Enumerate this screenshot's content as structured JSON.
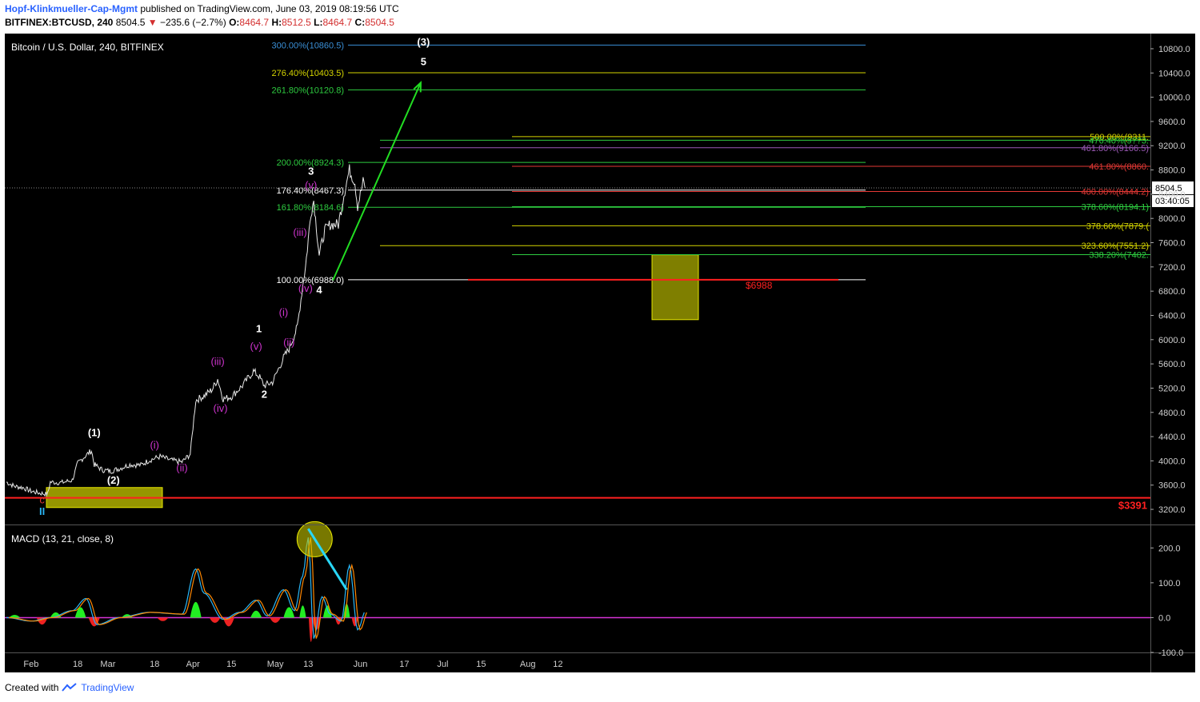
{
  "header": {
    "author": "Hopf-Klinkmueller-Cap-Mgmt",
    "published": "published on TradingView.com, June 03, 2019 08:19:56 UTC",
    "symbol": "BITFINEX:BTCUSD, 240",
    "last": "8504.5",
    "change": "−235.6 (−2.7%)",
    "o_label": "O:",
    "o": "8464.7",
    "h_label": "H:",
    "h": "8512.5",
    "l_label": "L:",
    "l": "8464.7",
    "c_label": "C:",
    "c": "8504.5"
  },
  "footer": {
    "created_with": "Created with",
    "brand": "TradingView"
  },
  "chart_data": [
    {
      "type": "line",
      "title": "Bitcoin / U.S. Dollar, 240, BITFINEX",
      "ylim": [
        2950,
        11050
      ],
      "y_ticks": [
        "10800.0",
        "10400.0",
        "10000.0",
        "9600.0",
        "9200.0",
        "8800.0",
        "8400.0",
        "8000.0",
        "7600.0",
        "7200.0",
        "6800.0",
        "6400.0",
        "6000.0",
        "5600.0",
        "5200.0",
        "4800.0",
        "4400.0",
        "4000.0",
        "3600.0",
        "3200.0"
      ],
      "x_ticks": [
        "Feb",
        "18",
        "Mar",
        "18",
        "Apr",
        "15",
        "May",
        "13",
        "Jun",
        "17",
        "Jul",
        "15",
        "Aug",
        "12"
      ],
      "current_price_label": "8504.5",
      "countdown_label": "03:40:05",
      "series": [
        {
          "x": [
            "2019-01-23",
            "2019-01-26",
            "2019-01-29",
            "2019-02-01",
            "2019-02-04",
            "2019-02-07",
            "2019-02-08",
            "2019-02-12",
            "2019-02-16",
            "2019-02-18",
            "2019-02-20",
            "2019-02-23",
            "2019-02-24",
            "2019-02-27",
            "2019-03-02",
            "2019-03-05",
            "2019-03-09",
            "2019-03-13",
            "2019-03-16",
            "2019-03-20",
            "2019-03-24",
            "2019-03-28",
            "2019-03-31",
            "2019-04-02",
            "2019-04-05",
            "2019-04-08",
            "2019-04-10",
            "2019-04-12",
            "2019-04-15",
            "2019-04-19",
            "2019-04-23",
            "2019-04-25",
            "2019-04-27",
            "2019-04-30",
            "2019-05-04",
            "2019-05-06",
            "2019-05-09",
            "2019-05-11",
            "2019-05-12",
            "2019-05-14",
            "2019-05-15",
            "2019-05-17",
            "2019-05-19",
            "2019-05-21",
            "2019-05-24",
            "2019-05-26",
            "2019-05-28",
            "2019-05-30",
            "2019-05-31",
            "2019-06-02",
            "2019-06-03"
          ],
          "values": [
            3650,
            3580,
            3560,
            3500,
            3470,
            3450,
            3650,
            3640,
            3680,
            3960,
            4050,
            4170,
            3940,
            3850,
            3830,
            3870,
            3940,
            3930,
            4010,
            4070,
            4010,
            3980,
            4110,
            5000,
            5070,
            5180,
            5350,
            5020,
            5060,
            5240,
            5480,
            5400,
            5240,
            5300,
            5700,
            5850,
            6200,
            6900,
            7200,
            8100,
            8300,
            7400,
            7800,
            7900,
            7900,
            8400,
            8800,
            8600,
            8200,
            8600,
            8504.5
          ]
        }
      ],
      "fib_levels_left": [
        {
          "label": "300.00%(10860.5)",
          "value": 10860.5,
          "color": "#3a8fd6"
        },
        {
          "label": "276.40%(10403.5)",
          "value": 10403.5,
          "color": "#d4d400"
        },
        {
          "label": "261.80%(10120.8)",
          "value": 10120.8,
          "color": "#2ecc40"
        },
        {
          "label": "200.00%(8924.3)",
          "value": 8924.3,
          "color": "#2ecc40"
        },
        {
          "label": "176.40%(8467.3)",
          "value": 8467.3,
          "color": "#ffffff"
        },
        {
          "label": "161.80%(8184.6)",
          "value": 8184.6,
          "color": "#2ecc40"
        },
        {
          "label": "100.00%(6988.0)",
          "value": 6988.0,
          "color": "#ffffff"
        }
      ],
      "fib_levels_right": [
        {
          "label": "500.00%(9311.",
          "value": 9350,
          "color": "#d4d400"
        },
        {
          "label": "476.40%(9??3.",
          "value": 9290,
          "color": "#2ecc40"
        },
        {
          "label": "461.80%(9166.5)",
          "value": 9166.5,
          "color": "#9b59b6"
        },
        {
          "label": "461.80%(8860.",
          "value": 8860,
          "color": "#e53935"
        },
        {
          "label": "400.00%(8444.2)",
          "value": 8444.2,
          "color": "#e53935"
        },
        {
          "label": "378.60%(8194.1)",
          "value": 8194.1,
          "color": "#2ecc40"
        },
        {
          "label": "378.60%(7879.(",
          "value": 7879,
          "color": "#d4d400"
        },
        {
          "label": "323.60%(7551.2)",
          "value": 7551.2,
          "color": "#d4d400"
        },
        {
          "label": "338.20%(7402.",
          "value": 7402,
          "color": "#2ecc40"
        }
      ],
      "support_levels": [
        {
          "label": "$6988",
          "value": 6988,
          "color": "#ff2020"
        },
        {
          "label": "$3391",
          "value": 3391,
          "color": "#ff2020"
        }
      ],
      "wave_labels": [
        {
          "text": "(3)",
          "x": "2019-06-24",
          "y": 10850,
          "color": "#ffffff"
        },
        {
          "text": "5",
          "x": "2019-06-24",
          "y": 10530,
          "color": "#ffffff"
        },
        {
          "text": "3",
          "x": "2019-05-14",
          "y": 8720,
          "color": "#ffffff"
        },
        {
          "text": "(v)",
          "x": "2019-05-14",
          "y": 8490,
          "color": "#cc33cc"
        },
        {
          "text": "(iii)",
          "x": "2019-05-10",
          "y": 7710,
          "color": "#cc33cc"
        },
        {
          "text": "(iv)",
          "x": "2019-05-12",
          "y": 6790,
          "color": "#cc33cc"
        },
        {
          "text": "4",
          "x": "2019-05-17",
          "y": 6760,
          "color": "#ffffff"
        },
        {
          "text": "(i)",
          "x": "2019-05-04",
          "y": 6390,
          "color": "#cc33cc"
        },
        {
          "text": "(ii)",
          "x": "2019-05-06",
          "y": 5900,
          "color": "#cc33cc"
        },
        {
          "text": "1",
          "x": "2019-04-25",
          "y": 6120,
          "color": "#ffffff"
        },
        {
          "text": "(v)",
          "x": "2019-04-24",
          "y": 5830,
          "color": "#cc33cc"
        },
        {
          "text": "2",
          "x": "2019-04-27",
          "y": 5040,
          "color": "#ffffff"
        },
        {
          "text": "(iii)",
          "x": "2019-04-10",
          "y": 5580,
          "color": "#cc33cc"
        },
        {
          "text": "(iv)",
          "x": "2019-04-11",
          "y": 4810,
          "color": "#cc33cc"
        },
        {
          "text": "(1)",
          "x": "2019-02-24",
          "y": 4410,
          "color": "#ffffff"
        },
        {
          "text": "(2)",
          "x": "2019-03-03",
          "y": 3620,
          "color": "#ffffff"
        },
        {
          "text": "(i)",
          "x": "2019-03-18",
          "y": 4200,
          "color": "#cc33cc"
        },
        {
          "text": "(ii)",
          "x": "2019-03-28",
          "y": 3830,
          "color": "#cc33cc"
        },
        {
          "text": "c",
          "x": "2019-02-05",
          "y": 3300,
          "color": "#e53935"
        },
        {
          "text": "II",
          "x": "2019-02-05",
          "y": 3110,
          "color": "#29b6f6"
        }
      ]
    },
    {
      "type": "bar",
      "title": "MACD (13, 21, close, 8)",
      "ylim": [
        -100,
        265
      ],
      "y_ticks": [
        "200.0",
        "100.0",
        "0.0",
        "-100.0"
      ],
      "series": [
        {
          "name": "MACD",
          "x": [
            "2019-01-23",
            "2019-02-01",
            "2019-02-08",
            "2019-02-16",
            "2019-02-21",
            "2019-02-25",
            "2019-03-05",
            "2019-03-16",
            "2019-03-28",
            "2019-04-02",
            "2019-04-05",
            "2019-04-12",
            "2019-04-18",
            "2019-04-24",
            "2019-04-28",
            "2019-05-04",
            "2019-05-08",
            "2019-05-11",
            "2019-05-13",
            "2019-05-15",
            "2019-05-18",
            "2019-05-21",
            "2019-05-25",
            "2019-05-28",
            "2019-05-31",
            "2019-06-03"
          ],
          "values": [
            0,
            -10,
            0,
            20,
            55,
            -20,
            0,
            15,
            10,
            140,
            70,
            -5,
            15,
            50,
            5,
            80,
            20,
            120,
            230,
            -60,
            60,
            10,
            -10,
            150,
            -35,
            20
          ]
        },
        {
          "name": "Histogram",
          "x": [
            "2019-01-26",
            "2019-02-05",
            "2019-02-10",
            "2019-02-19",
            "2019-02-24",
            "2019-03-08",
            "2019-03-21",
            "2019-04-02",
            "2019-04-09",
            "2019-04-14",
            "2019-04-24",
            "2019-05-01",
            "2019-05-06",
            "2019-05-11",
            "2019-05-14",
            "2019-05-16",
            "2019-05-20",
            "2019-05-24",
            "2019-05-27",
            "2019-05-30"
          ],
          "values": [
            8,
            -20,
            15,
            30,
            -25,
            10,
            -10,
            45,
            -15,
            -25,
            20,
            -15,
            30,
            35,
            -70,
            -35,
            35,
            -20,
            40,
            -25
          ]
        }
      ]
    }
  ]
}
